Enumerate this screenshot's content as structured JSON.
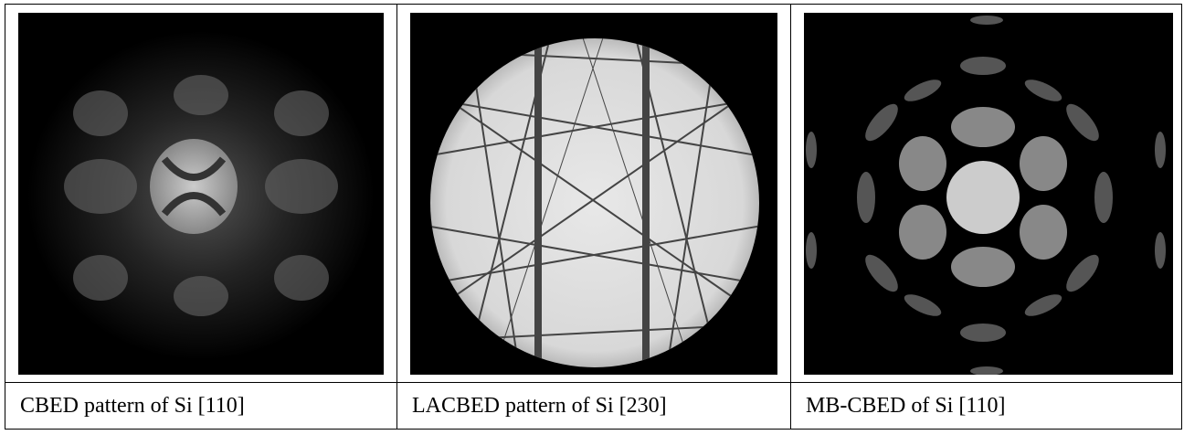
{
  "table": {
    "captions": [
      "CBED pattern of Si [110]",
      "LACBED pattern of Si [230]",
      "MB-CBED of Si [110]"
    ]
  }
}
